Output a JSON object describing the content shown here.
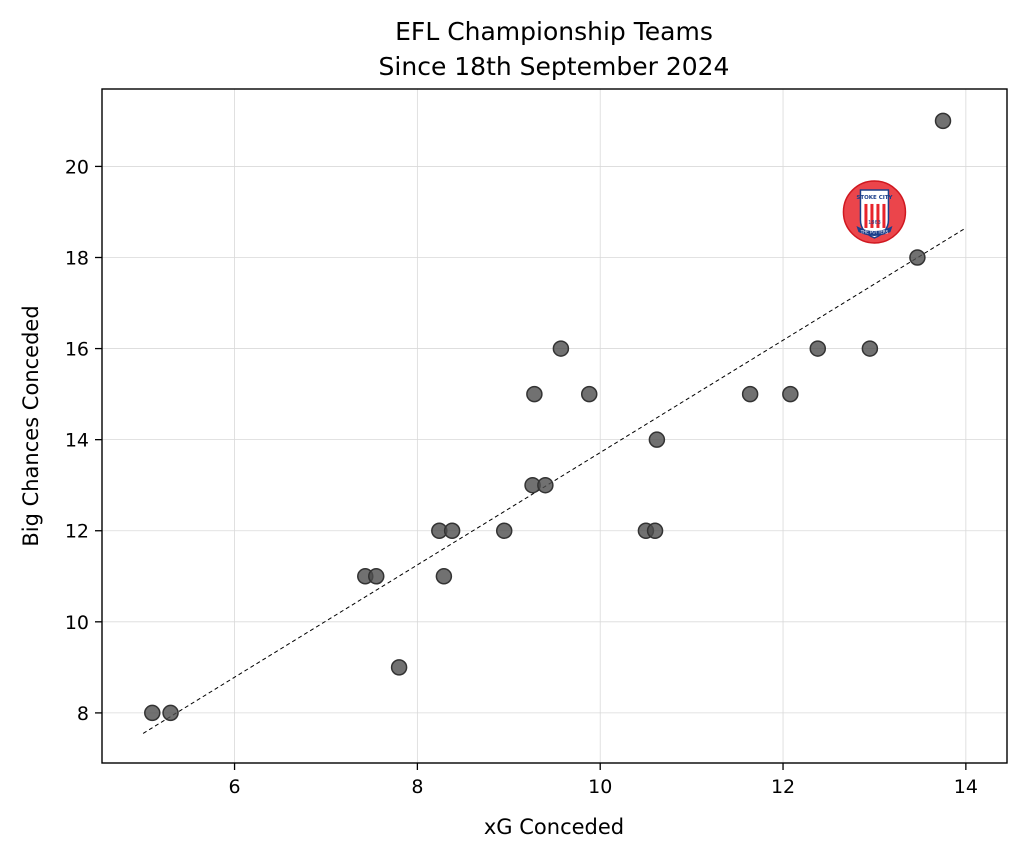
{
  "chart_data": {
    "type": "scatter",
    "title_line1": "EFL Championship Teams",
    "title_line2": "Since 18th September 2024",
    "xlabel": "xG Conceded",
    "ylabel": "Big Chances Conceded",
    "xlim": [
      4.55,
      14.45
    ],
    "ylim": [
      6.9,
      21.7
    ],
    "xticks": [
      6,
      8,
      10,
      12,
      14
    ],
    "yticks": [
      8,
      10,
      12,
      14,
      16,
      18,
      20
    ],
    "grid": true,
    "points": [
      {
        "x": 5.1,
        "y": 8
      },
      {
        "x": 5.3,
        "y": 8
      },
      {
        "x": 7.43,
        "y": 11
      },
      {
        "x": 7.55,
        "y": 11
      },
      {
        "x": 7.8,
        "y": 9
      },
      {
        "x": 8.24,
        "y": 12
      },
      {
        "x": 8.29,
        "y": 11
      },
      {
        "x": 8.38,
        "y": 12
      },
      {
        "x": 8.95,
        "y": 12
      },
      {
        "x": 9.26,
        "y": 13
      },
      {
        "x": 9.28,
        "y": 15
      },
      {
        "x": 9.4,
        "y": 13
      },
      {
        "x": 9.57,
        "y": 16
      },
      {
        "x": 9.88,
        "y": 15
      },
      {
        "x": 10.5,
        "y": 12
      },
      {
        "x": 10.6,
        "y": 12
      },
      {
        "x": 10.62,
        "y": 14
      },
      {
        "x": 11.64,
        "y": 15
      },
      {
        "x": 12.08,
        "y": 15
      },
      {
        "x": 12.38,
        "y": 16
      },
      {
        "x": 12.95,
        "y": 16
      },
      {
        "x": 13.47,
        "y": 18
      },
      {
        "x": 13.75,
        "y": 21
      }
    ],
    "trendline": {
      "x": [
        5.0,
        14.0
      ],
      "y": [
        7.55,
        18.65
      ],
      "style": "dashed"
    },
    "highlight": {
      "team": "Stoke City",
      "x": 13.0,
      "y": 19,
      "color": "#e8242b",
      "badge_text_top": "STOKE CITY",
      "badge_year": "1863",
      "badge_text_bottom": "THE POTTERS"
    }
  }
}
